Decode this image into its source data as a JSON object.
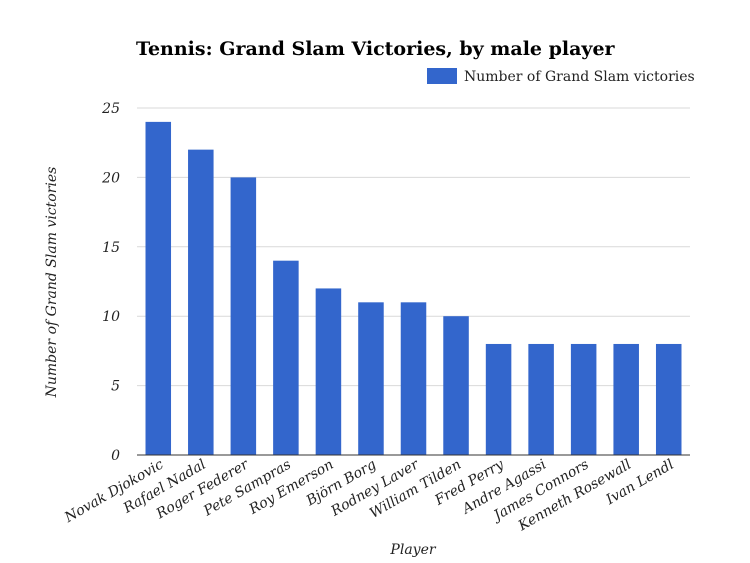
{
  "chart_data": {
    "type": "bar",
    "title": "Tennis: Grand Slam Victories, by male player",
    "xlabel": "Player",
    "ylabel": "Number of Grand Slam victories",
    "ylim": [
      0,
      25
    ],
    "yticks": [
      0,
      5,
      10,
      15,
      20,
      25
    ],
    "grid": true,
    "legend_position": "top-right",
    "bar_color": "#3366cc",
    "categories": [
      "Novak Djokovic",
      "Rafael Nadal",
      "Roger Federer",
      "Pete Sampras",
      "Roy Emerson",
      "Björn Borg",
      "Rodney Laver",
      "William Tilden",
      "Fred Perry",
      "Andre Agassi",
      "James Connors",
      "Kenneth Rosewall",
      "Ivan Lendl"
    ],
    "series": [
      {
        "name": "Number of Grand Slam victories",
        "values": [
          24,
          22,
          20,
          14,
          12,
          11,
          11,
          10,
          8,
          8,
          8,
          8,
          8
        ]
      }
    ]
  }
}
